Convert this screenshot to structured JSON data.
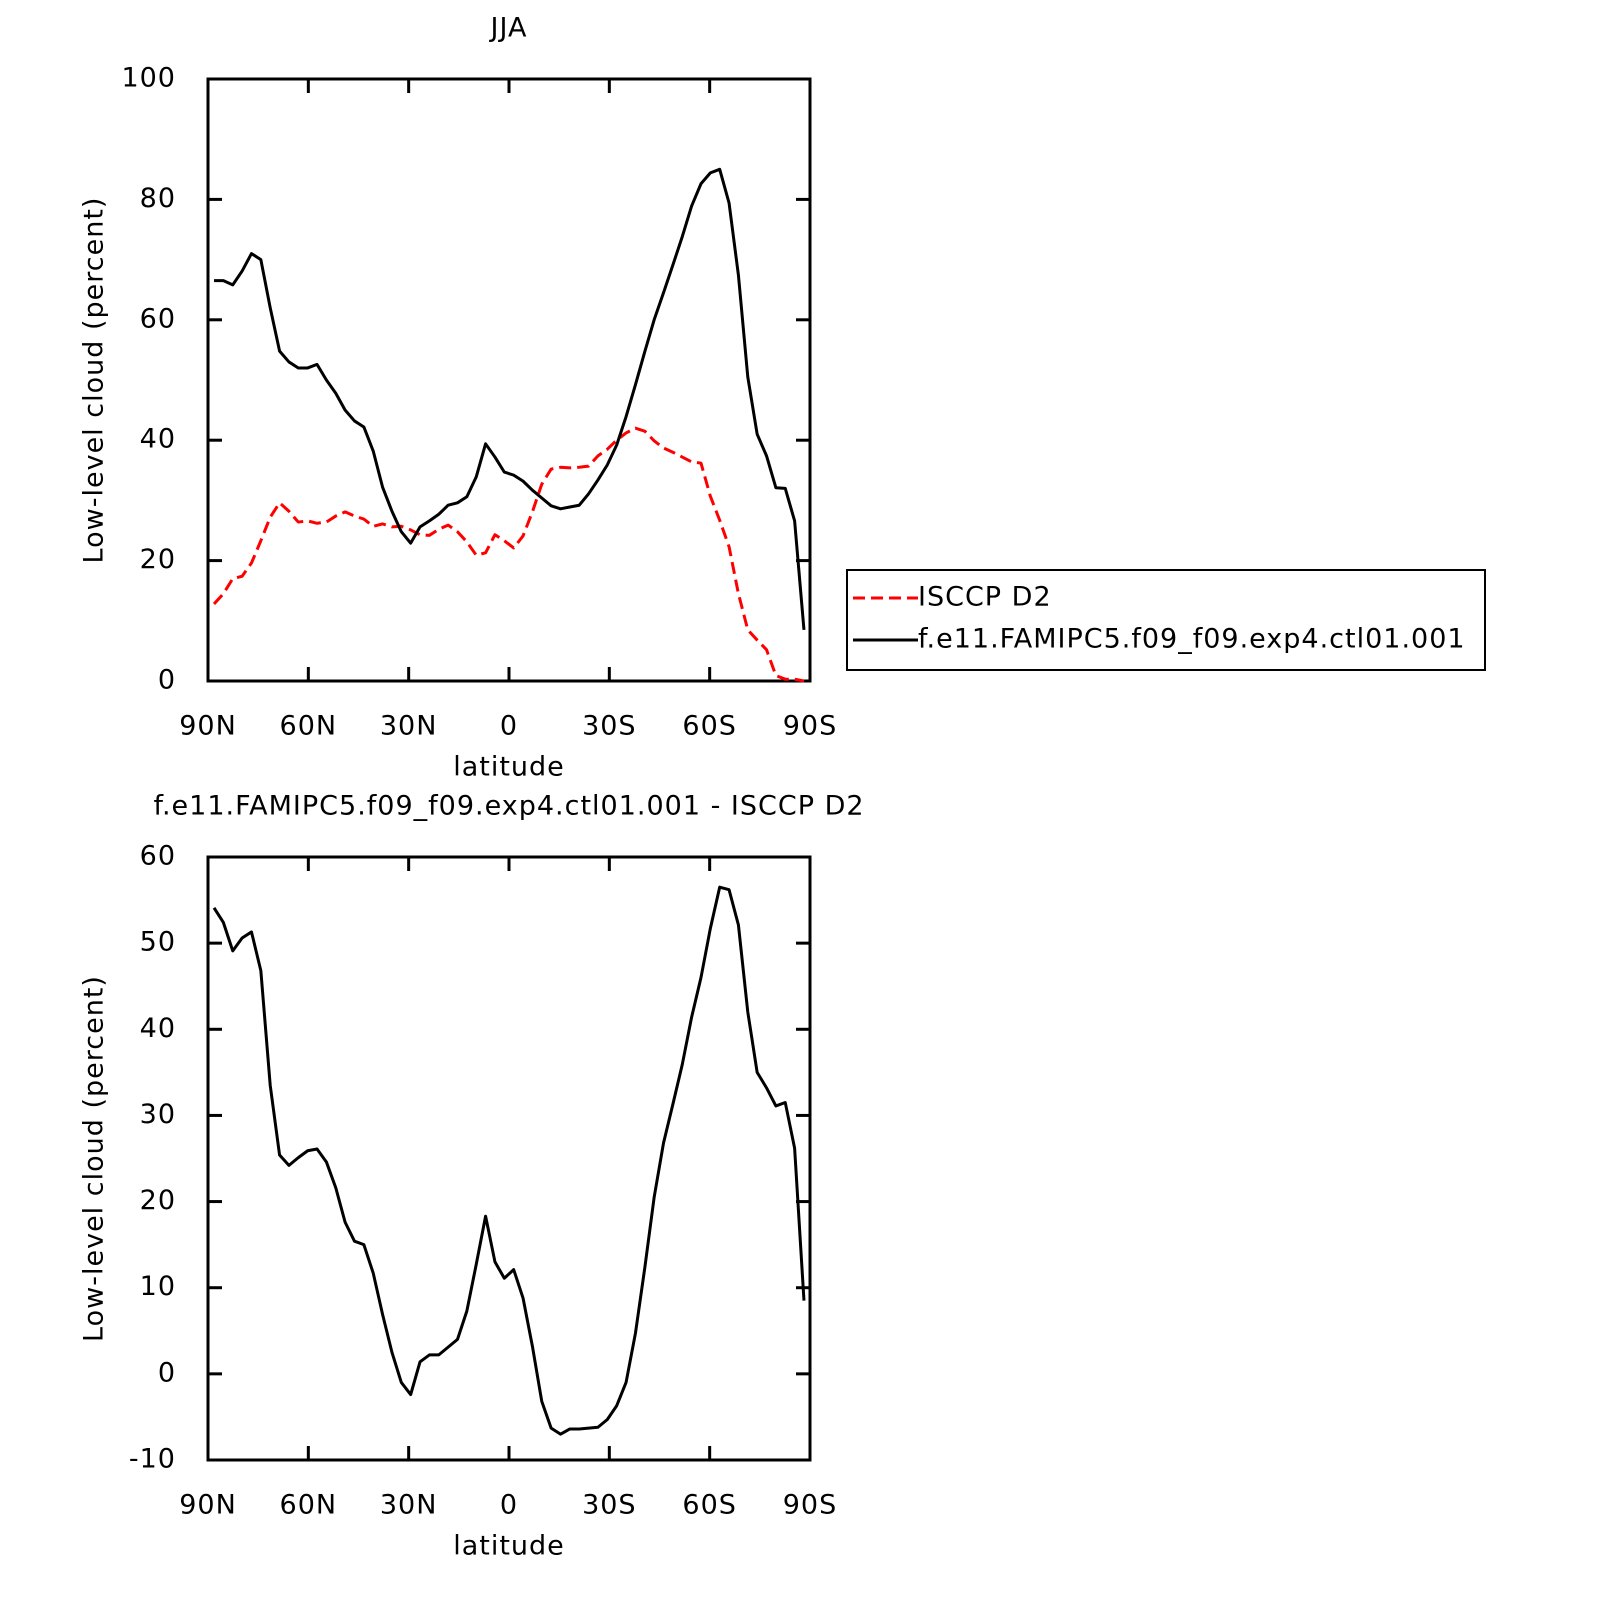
{
  "chart_data": [
    {
      "type": "line",
      "title": "JJA",
      "y_label": "Low-level cloud (percent)",
      "x_label": "latitude",
      "x": [
        88.2,
        85.4,
        82.6,
        79.8,
        77.0,
        74.2,
        71.4,
        68.6,
        65.8,
        63.0,
        60.2,
        57.4,
        54.6,
        51.8,
        49.0,
        46.2,
        43.4,
        40.6,
        37.8,
        35.0,
        32.2,
        29.4,
        26.6,
        23.8,
        21.0,
        18.2,
        15.4,
        12.6,
        9.8,
        7.0,
        4.2,
        1.4,
        -1.4,
        -4.2,
        -7.0,
        -9.8,
        -12.6,
        -15.4,
        -18.2,
        -21.0,
        -23.8,
        -26.6,
        -29.4,
        -32.2,
        -35.0,
        -37.8,
        -40.6,
        -43.4,
        -46.2,
        -49.0,
        -51.8,
        -54.6,
        -57.4,
        -60.2,
        -63.0,
        -65.8,
        -68.6,
        -71.4,
        -74.2,
        -77.0,
        -79.8,
        -82.6,
        -85.4,
        -88.2
      ],
      "series": [
        {
          "name": "ISCCP D2",
          "color": "#ff0000",
          "dash": "dashed",
          "values": [
            12.8,
            14.5,
            17,
            17.4,
            19.6,
            23.3,
            27.2,
            29.6,
            28.2,
            26.4,
            26.6,
            26.2,
            26.4,
            27.4,
            28.1,
            27.4,
            26.9,
            25.7,
            26.1,
            25.6,
            25.7,
            25.1,
            24.3,
            24.2,
            25.2,
            25.9,
            24.8,
            23.1,
            20.9,
            21.3,
            24.3,
            23.3,
            22.1,
            24.1,
            28.1,
            32.7,
            35.2,
            35.5,
            35.4,
            35.5,
            35.7,
            37.4,
            38.5,
            40,
            41.2,
            42,
            41.5,
            39.9,
            38.7,
            38,
            37.2,
            36.4,
            36.2,
            30.7,
            26.7,
            22.3,
            14.5,
            8.5,
            6.8,
            5.2,
            0.9,
            0.3,
            0.3,
            0
          ]
        },
        {
          "name": "f.e11.FAMIPC5.f09_f09.exp4.ctl01.001",
          "color": "#000000",
          "dash": "solid",
          "values": [
            66.5,
            66.5,
            65.8,
            68.1,
            71,
            70,
            62,
            54.8,
            53,
            52,
            52,
            52.6,
            50,
            47.8,
            45,
            43.2,
            42.2,
            38.2,
            32.2,
            28.2,
            24.8,
            22.9,
            25.6,
            26.6,
            27.7,
            29.2,
            29.6,
            30.6,
            33.9,
            39.4,
            37.2,
            34.7,
            34.2,
            33.2,
            31.7,
            30.4,
            29.1,
            28.6,
            28.9,
            29.2,
            31.1,
            33.4,
            35.9,
            39.2,
            43.9,
            49.2,
            54.7,
            60,
            64.5,
            69.1,
            73.8,
            78.9,
            82.6,
            84.4,
            85,
            79.4,
            67.4,
            50.5,
            41,
            37.4,
            32.1,
            32,
            26.6,
            8.5
          ]
        }
      ],
      "xlim": [
        90,
        -90
      ],
      "xticks": [
        {
          "value": 90,
          "label": "90N"
        },
        {
          "value": 60,
          "label": "60N"
        },
        {
          "value": 30,
          "label": "30N"
        },
        0,
        {
          "value": -30,
          "label": "30S"
        },
        {
          "value": -60,
          "label": "60S"
        },
        {
          "value": -90,
          "label": "90S"
        }
      ],
      "ylim": [
        0,
        100
      ],
      "yticks": [
        0,
        20,
        40,
        60,
        80,
        100
      ],
      "legend": "right"
    },
    {
      "type": "line",
      "title": "f.e11.FAMIPC5.f09_f09.exp4.ctl01.001 - ISCCP D2",
      "y_label": "Low-level cloud (percent)",
      "x_label": "latitude",
      "x": [
        88.2,
        85.4,
        82.6,
        79.8,
        77.0,
        74.2,
        71.4,
        68.6,
        65.8,
        63.0,
        60.2,
        57.4,
        54.6,
        51.8,
        49.0,
        46.2,
        43.4,
        40.6,
        37.8,
        35.0,
        32.2,
        29.4,
        26.6,
        23.8,
        21.0,
        18.2,
        15.4,
        12.6,
        9.8,
        7.0,
        4.2,
        1.4,
        -1.4,
        -4.2,
        -7.0,
        -9.8,
        -12.6,
        -15.4,
        -18.2,
        -21.0,
        -23.8,
        -26.6,
        -29.4,
        -32.2,
        -35.0,
        -37.8,
        -40.6,
        -43.4,
        -46.2,
        -49.0,
        -51.8,
        -54.6,
        -57.4,
        -60.2,
        -63.0,
        -65.8,
        -68.6,
        -71.4,
        -74.2,
        -77.0,
        -79.8,
        -82.6,
        -85.4,
        -88.2
      ],
      "values": [
        54.1,
        52.4,
        49.1,
        50.6,
        51.3,
        46.8,
        33.5,
        25.4,
        24.2,
        25.1,
        25.9,
        26.1,
        24.6,
        21.6,
        17.6,
        15.4,
        15,
        11.7,
        6.9,
        2.5,
        -1,
        -2.4,
        1.4,
        2.2,
        2.2,
        3.1,
        4,
        7.3,
        12.7,
        18.3,
        13,
        11.1,
        12.1,
        8.8,
        3.2,
        -3.2,
        -6.3,
        -7,
        -6.4,
        -6.4,
        -6.3,
        -6.2,
        -5.3,
        -3.7,
        -1,
        4.7,
        12.3,
        20.5,
        26.8,
        31.3,
        35.9,
        41.4,
        46,
        51.7,
        56.5,
        56.2,
        52.1,
        42,
        35,
        33.2,
        31.1,
        31.5,
        26.2,
        8.5
      ],
      "color": "#000000",
      "xlim": [
        90,
        -90
      ],
      "xticks": [
        {
          "value": 90,
          "label": "90N"
        },
        {
          "value": 60,
          "label": "60N"
        },
        {
          "value": 30,
          "label": "30N"
        },
        0,
        {
          "value": -30,
          "label": "30S"
        },
        {
          "value": -60,
          "label": "60S"
        },
        {
          "value": -90,
          "label": "90S"
        }
      ],
      "ylim": [
        -10,
        60
      ],
      "yticks": [
        -10,
        0,
        10,
        20,
        30,
        40,
        50,
        60
      ]
    }
  ]
}
